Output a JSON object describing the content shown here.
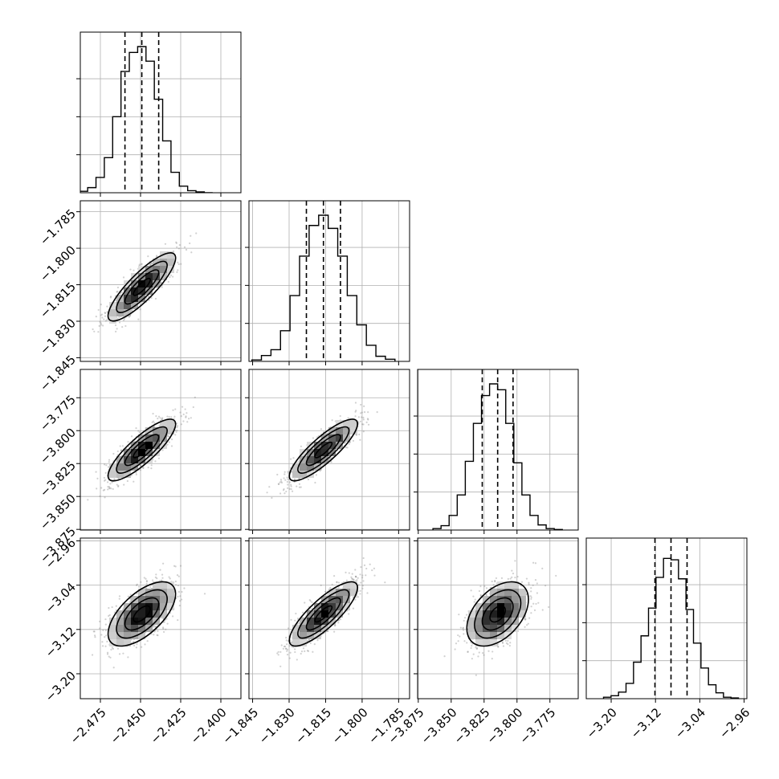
{
  "chart_data": {
    "type": "corner",
    "n_params": 4,
    "params": [
      {
        "ticks": [
          -2.475,
          -2.45,
          -2.425,
          -2.4
        ],
        "tick_labels": [
          "−2.475",
          "−2.450",
          "−2.425",
          "−2.400"
        ],
        "range": [
          -2.4875,
          -2.3875
        ],
        "median": -2.4492,
        "q16": -2.4597,
        "q84": -2.4387,
        "sigma": 0.0105
      },
      {
        "ticks": [
          -1.845,
          -1.83,
          -1.815,
          -1.8,
          -1.785
        ],
        "tick_labels": [
          "−1.845",
          "−1.830",
          "−1.815",
          "−1.800",
          "−1.785"
        ],
        "range": [
          -1.8465,
          -1.7805
        ],
        "median": -1.8159,
        "q16": -1.8229,
        "q84": -1.8089,
        "sigma": 0.007
      },
      {
        "ticks": [
          -3.875,
          -3.85,
          -3.825,
          -3.8,
          -3.775
        ],
        "tick_labels": [
          "−3.875",
          "−3.850",
          "−3.825",
          "−3.800",
          "−3.775"
        ],
        "range": [
          -3.8755,
          -3.7535
        ],
        "median": -3.8147,
        "q16": -3.8264,
        "q84": -3.803,
        "sigma": 0.0117
      },
      {
        "ticks": [
          -3.2,
          -3.12,
          -3.04,
          -2.96
        ],
        "tick_labels": [
          "−3.20",
          "−3.12",
          "−3.04",
          "−2.96"
        ],
        "range": [
          -3.245,
          -2.955
        ],
        "median": -3.092,
        "q16": -3.121,
        "q84": -3.063,
        "sigma": 0.029
      }
    ],
    "hist_counts": [
      [
        0.004,
        0.01,
        0.035,
        0.105,
        0.24,
        0.52,
        0.83,
        0.96,
        1.0,
        0.9,
        0.64,
        0.355,
        0.14,
        0.045,
        0.014,
        0.006,
        0.0
      ],
      [
        0.01,
        0.04,
        0.08,
        0.21,
        0.45,
        0.72,
        0.93,
        1.0,
        0.91,
        0.72,
        0.45,
        0.25,
        0.11,
        0.035,
        0.015
      ],
      [
        0.01,
        0.03,
        0.1,
        0.24,
        0.47,
        0.73,
        0.92,
        1.0,
        0.96,
        0.73,
        0.46,
        0.24,
        0.1,
        0.035,
        0.01,
        0.004
      ],
      [
        0.01,
        0.02,
        0.045,
        0.105,
        0.25,
        0.43,
        0.62,
        0.83,
        0.96,
        0.95,
        0.82,
        0.61,
        0.38,
        0.21,
        0.095,
        0.04,
        0.01,
        0.005
      ]
    ],
    "correlations": [
      [
        1.0,
        0.85,
        0.84,
        0.62
      ],
      [
        0.85,
        1.0,
        0.85,
        0.82
      ],
      [
        0.84,
        0.85,
        1.0,
        0.45
      ],
      [
        0.62,
        0.82,
        0.45,
        1.0
      ]
    ],
    "contour_levels_sigma": [
      0.5,
      1.0,
      1.5,
      2.0
    ],
    "grid": true
  }
}
